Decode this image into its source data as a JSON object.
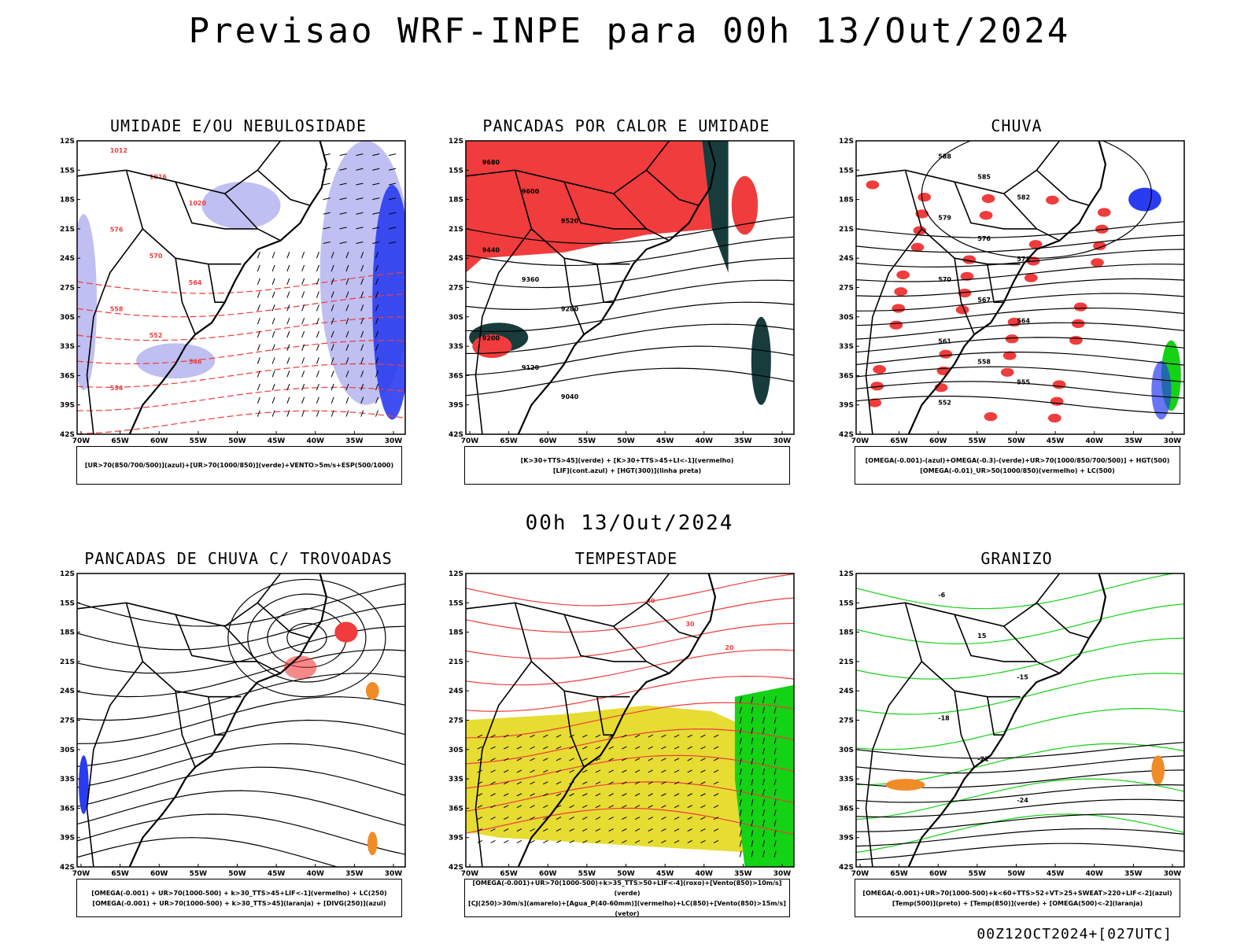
{
  "main_title": "Previsao WRF-INPE  para 00h 13/Out/2024",
  "sub_title": "00h 13/Out/2024",
  "footer": "00Z12OCT2024+[027UTC]",
  "lat_labels": [
    "12S",
    "15S",
    "18S",
    "21S",
    "24S",
    "27S",
    "30S",
    "33S",
    "36S",
    "39S",
    "42S"
  ],
  "lon_labels": [
    "70W",
    "65W",
    "60W",
    "55W",
    "50W",
    "45W",
    "40W",
    "35W",
    "30W"
  ],
  "panels": [
    {
      "title": "UMIDADE E/OU NEBULOSIDADE",
      "legend": [
        "[UR>70(850/700/500)](azul)+[UR>70(1000/850)](verde)+VENTO>5m/s+ESP(500/1000)"
      ],
      "contour_labels": [
        "1012",
        "1016",
        "1020",
        "576",
        "570",
        "564",
        "558",
        "552",
        "546",
        "534"
      ]
    },
    {
      "title": "PANCADAS POR CALOR E UMIDADE",
      "legend": [
        "[K>30+TTS>45](verde)  +  [K>30+TTS>45+LI<-1](vermelho)",
        "[LIF](cont.azul)  +  [HGT(300)](linha preta)"
      ],
      "contour_labels": [
        "9680",
        "9600",
        "9520",
        "9440",
        "9360",
        "9280",
        "9200",
        "9120",
        "9040"
      ]
    },
    {
      "title": "CHUVA",
      "legend": [
        "[OMEGA(-0.001)-(azul)+OMEGA(-0.3)-(verde)+UR>70(1000/850/700/500)]  +  HGT(500)",
        "[OMEGA(-0.01)_UR>50(1000/850)(vermelho)  +  LC(500)"
      ],
      "contour_labels": [
        "588",
        "585",
        "582",
        "579",
        "576",
        "573",
        "570",
        "567",
        "564",
        "561",
        "558",
        "555",
        "552"
      ]
    },
    {
      "title": "PANCADAS DE CHUVA C/ TROVOADAS",
      "legend": [
        "[OMEGA(-0.001)  +  UR>70(1000-500)  +  k>30_TTS>45+LIF<-1](vermelho)  +  LC(250)",
        "[OMEGA(-0.001)  +  UR>70(1000-500)  +  k>30_TTS>45](laranja)  +  [DIVG(250)](azul)"
      ],
      "contour_labels": []
    },
    {
      "title": "TEMPESTADE",
      "legend": [
        "[OMEGA(-0.001)+UR>70(1000-500)+k>35_TTS>50+LIF<-4](roxo)+[Vento(850)>10m/s](verde)",
        "[CJ(250)>30m/s](amarelo)+[Agua_P(40-60mm)](vermelho)+LC(850)+[Vento(850)>15m/s](vetor)"
      ],
      "contour_labels": [
        "40",
        "30",
        "20"
      ]
    },
    {
      "title": "GRANIZO",
      "legend": [
        "[OMEGA(-0.001)+UR>70(1000-500)+k<60+TTS>52+VT>25+SWEAT>220+LIF<-2](azul)",
        "[Temp(500)](preto)  +  [Temp(850)](verde)  +  [OMEGA(500)<-2](laranja)"
      ],
      "contour_labels": [
        "-6",
        "15",
        "-15",
        "-18",
        "-21",
        "-24"
      ]
    }
  ],
  "colors": {
    "red": "#f03c3c",
    "blue": "#2a3cf0",
    "lightblue": "#b8b8f0",
    "green": "#14d214",
    "darkteal": "#183c3c",
    "yellow": "#e6dc32",
    "orange": "#f08c28",
    "black": "#000000"
  }
}
